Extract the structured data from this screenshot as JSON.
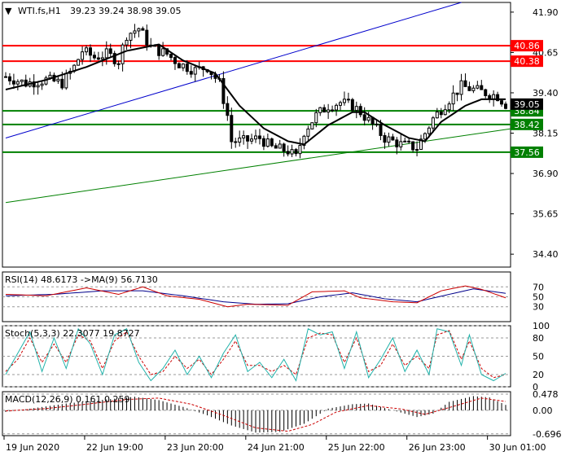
{
  "header": {
    "symbol": "WTI.fs,H1",
    "ohlc": "39.23 39.24 38.98 39.05",
    "current_price": "39.05"
  },
  "indicators": {
    "rsi_label": "RSI(14) 48.6173  ->MA(9) 56.7130",
    "stoch_label": "Stoch(5,3,3) 22.3077 19.8727",
    "macd_label": "MACD(12,26,9) 0.161 0.259"
  },
  "colors": {
    "resistance": "#ff0000",
    "support": "#008000",
    "upper_channel": "#0000cc",
    "lower_channel": "#008000",
    "ma": "#000000",
    "rsi": "#cc0000",
    "rsi_ma": "#00008b",
    "stoch_main": "#20b2aa",
    "stoch_signal": "#cc0000",
    "macd_hist": "#000000",
    "macd_signal": "#cc0000"
  },
  "chart_data": [
    {
      "type": "candlestick",
      "ylim": [
        34.0,
        42.2
      ],
      "y_ticks": [
        "41.90",
        "40.65",
        "39.40",
        "38.15",
        "36.90",
        "35.65",
        "34.40"
      ],
      "x_ticks": [
        "19 Jun 2020",
        "22 Jun 19:00",
        "23 Jun 20:00",
        "24 Jun 21:00",
        "25 Jun 22:00",
        "26 Jun 23:00",
        "30 Jun 01:00"
      ],
      "levels": [
        {
          "value": 40.86,
          "label": "40.86",
          "kind": "resistance"
        },
        {
          "value": 40.38,
          "label": "40.38",
          "kind": "resistance"
        },
        {
          "value": 38.84,
          "label": "38.84",
          "kind": "support"
        },
        {
          "value": 38.42,
          "label": "38.42",
          "kind": "support"
        },
        {
          "value": 37.56,
          "label": "37.56",
          "kind": "support"
        }
      ],
      "trend_lines": [
        {
          "name": "upper channel",
          "from": [
            0,
            38.0
          ],
          "to": [
            113,
            42.2
          ]
        },
        {
          "name": "lower channel",
          "from": [
            0,
            36.0
          ],
          "to": [
            126,
            38.3
          ]
        }
      ],
      "price_path": [
        [
          0,
          39.9
        ],
        [
          5,
          39.7
        ],
        [
          10,
          39.8
        ],
        [
          14,
          39.7
        ],
        [
          17,
          40.2
        ],
        [
          19,
          40.7
        ],
        [
          22,
          40.5
        ],
        [
          25,
          40.6
        ],
        [
          28,
          40.4
        ],
        [
          30,
          41.2
        ],
        [
          33,
          41.4
        ],
        [
          36,
          40.8
        ],
        [
          40,
          40.6
        ],
        [
          43,
          40.3
        ],
        [
          47,
          40.1
        ],
        [
          50,
          40.2
        ],
        [
          53,
          39.7
        ],
        [
          55,
          38.7
        ],
        [
          56,
          37.9
        ],
        [
          59,
          37.9
        ],
        [
          63,
          38.0
        ],
        [
          66,
          37.7
        ],
        [
          70,
          37.6
        ],
        [
          72,
          37.4
        ],
        [
          74,
          38.2
        ],
        [
          77,
          38.7
        ],
        [
          80,
          39.0
        ],
        [
          83,
          39.1
        ],
        [
          86,
          39.0
        ],
        [
          88,
          38.8
        ],
        [
          91,
          38.4
        ],
        [
          94,
          38.0
        ],
        [
          98,
          37.8
        ],
        [
          102,
          37.7
        ],
        [
          106,
          38.6
        ],
        [
          110,
          39.2
        ],
        [
          113,
          39.6
        ],
        [
          116,
          39.5
        ],
        [
          119,
          39.4
        ],
        [
          122,
          39.3
        ],
        [
          124,
          39.05
        ]
      ],
      "ma_path": [
        [
          0,
          39.5
        ],
        [
          10,
          39.8
        ],
        [
          20,
          40.2
        ],
        [
          30,
          40.7
        ],
        [
          38,
          40.9
        ],
        [
          44,
          40.4
        ],
        [
          52,
          40.0
        ],
        [
          58,
          39.0
        ],
        [
          64,
          38.3
        ],
        [
          70,
          37.9
        ],
        [
          74,
          37.8
        ],
        [
          80,
          38.4
        ],
        [
          86,
          38.8
        ],
        [
          89,
          38.8
        ],
        [
          94,
          38.4
        ],
        [
          100,
          38.0
        ],
        [
          104,
          37.9
        ],
        [
          108,
          38.5
        ],
        [
          114,
          39.0
        ],
        [
          118,
          39.2
        ],
        [
          124,
          39.2
        ]
      ]
    },
    {
      "type": "line",
      "title": "RSI(14) 48.6173  ->MA(9) 56.7130",
      "ylim": [
        0,
        100
      ],
      "y_ticks": [
        "70",
        "50",
        "30"
      ],
      "series": [
        {
          "values_path": [
            [
              0,
              55
            ],
            [
              10,
              52
            ],
            [
              20,
              68
            ],
            [
              28,
              55
            ],
            [
              34,
              70
            ],
            [
              40,
              52
            ],
            [
              48,
              45
            ],
            [
              55,
              30
            ],
            [
              60,
              35
            ],
            [
              70,
              33
            ],
            [
              76,
              60
            ],
            [
              84,
              62
            ],
            [
              88,
              48
            ],
            [
              96,
              40
            ],
            [
              102,
              38
            ],
            [
              108,
              62
            ],
            [
              114,
              72
            ],
            [
              118,
              65
            ],
            [
              124,
              48
            ]
          ]
        },
        {
          "values_path": [
            [
              0,
              52
            ],
            [
              12,
              55
            ],
            [
              24,
              62
            ],
            [
              34,
              62
            ],
            [
              44,
              52
            ],
            [
              54,
              40
            ],
            [
              62,
              35
            ],
            [
              70,
              36
            ],
            [
              78,
              50
            ],
            [
              86,
              58
            ],
            [
              94,
              46
            ],
            [
              102,
              40
            ],
            [
              110,
              55
            ],
            [
              116,
              66
            ],
            [
              124,
              57
            ]
          ]
        }
      ]
    },
    {
      "type": "line",
      "title": "Stoch(5,3,3) 22.3077 19.8727",
      "ylim": [
        0,
        100
      ],
      "y_ticks": [
        "100",
        "80",
        "50",
        "20",
        "0"
      ],
      "series": [
        {
          "values_path": [
            [
              0,
              20
            ],
            [
              3,
              55
            ],
            [
              6,
              90
            ],
            [
              9,
              25
            ],
            [
              12,
              80
            ],
            [
              15,
              30
            ],
            [
              18,
              95
            ],
            [
              21,
              70
            ],
            [
              24,
              20
            ],
            [
              27,
              85
            ],
            [
              30,
              95
            ],
            [
              33,
              40
            ],
            [
              36,
              10
            ],
            [
              39,
              30
            ],
            [
              42,
              60
            ],
            [
              45,
              20
            ],
            [
              48,
              50
            ],
            [
              51,
              15
            ],
            [
              54,
              55
            ],
            [
              57,
              85
            ],
            [
              60,
              25
            ],
            [
              63,
              40
            ],
            [
              66,
              15
            ],
            [
              69,
              45
            ],
            [
              72,
              10
            ],
            [
              75,
              95
            ],
            [
              78,
              85
            ],
            [
              81,
              90
            ],
            [
              84,
              30
            ],
            [
              87,
              90
            ],
            [
              90,
              15
            ],
            [
              93,
              45
            ],
            [
              96,
              80
            ],
            [
              99,
              25
            ],
            [
              102,
              60
            ],
            [
              105,
              20
            ],
            [
              107,
              95
            ],
            [
              110,
              90
            ],
            [
              113,
              35
            ],
            [
              115,
              85
            ],
            [
              118,
              20
            ],
            [
              121,
              10
            ],
            [
              124,
              22
            ]
          ]
        },
        {
          "values_path": [
            [
              0,
              25
            ],
            [
              3,
              45
            ],
            [
              6,
              80
            ],
            [
              9,
              40
            ],
            [
              12,
              70
            ],
            [
              15,
              40
            ],
            [
              18,
              85
            ],
            [
              21,
              75
            ],
            [
              24,
              30
            ],
            [
              27,
              75
            ],
            [
              30,
              90
            ],
            [
              33,
              50
            ],
            [
              36,
              20
            ],
            [
              39,
              25
            ],
            [
              42,
              50
            ],
            [
              45,
              30
            ],
            [
              48,
              45
            ],
            [
              51,
              20
            ],
            [
              54,
              45
            ],
            [
              57,
              75
            ],
            [
              60,
              35
            ],
            [
              63,
              35
            ],
            [
              66,
              25
            ],
            [
              69,
              35
            ],
            [
              72,
              20
            ],
            [
              75,
              80
            ],
            [
              78,
              88
            ],
            [
              81,
              85
            ],
            [
              84,
              40
            ],
            [
              87,
              80
            ],
            [
              90,
              25
            ],
            [
              93,
              35
            ],
            [
              96,
              70
            ],
            [
              99,
              35
            ],
            [
              102,
              50
            ],
            [
              105,
              30
            ],
            [
              107,
              85
            ],
            [
              110,
              92
            ],
            [
              113,
              45
            ],
            [
              115,
              75
            ],
            [
              118,
              30
            ],
            [
              121,
              15
            ],
            [
              124,
              20
            ]
          ]
        }
      ]
    },
    {
      "type": "bar",
      "title": "MACD(12,26,9) 0.161 0.259",
      "ylim": [
        -0.75,
        0.55
      ],
      "y_ticks": [
        "0.478",
        "0.00",
        "-0.696"
      ],
      "hist_path": [
        [
          0,
          -0.05
        ],
        [
          8,
          0.08
        ],
        [
          15,
          0.2
        ],
        [
          25,
          0.32
        ],
        [
          32,
          0.4
        ],
        [
          38,
          0.3
        ],
        [
          44,
          0.1
        ],
        [
          50,
          -0.15
        ],
        [
          56,
          -0.45
        ],
        [
          62,
          -0.66
        ],
        [
          68,
          -0.64
        ],
        [
          74,
          -0.4
        ],
        [
          80,
          0.05
        ],
        [
          86,
          0.18
        ],
        [
          90,
          0.2
        ],
        [
          96,
          0.0
        ],
        [
          102,
          -0.2
        ],
        [
          106,
          -0.1
        ],
        [
          110,
          0.25
        ],
        [
          116,
          0.42
        ],
        [
          120,
          0.38
        ],
        [
          124,
          0.16
        ]
      ],
      "signal_path": [
        [
          0,
          -0.02
        ],
        [
          10,
          0.05
        ],
        [
          20,
          0.18
        ],
        [
          30,
          0.32
        ],
        [
          38,
          0.36
        ],
        [
          46,
          0.18
        ],
        [
          54,
          -0.15
        ],
        [
          62,
          -0.52
        ],
        [
          70,
          -0.62
        ],
        [
          76,
          -0.42
        ],
        [
          82,
          -0.05
        ],
        [
          90,
          0.14
        ],
        [
          98,
          0.04
        ],
        [
          104,
          -0.12
        ],
        [
          110,
          0.08
        ],
        [
          118,
          0.36
        ],
        [
          124,
          0.26
        ]
      ]
    }
  ]
}
